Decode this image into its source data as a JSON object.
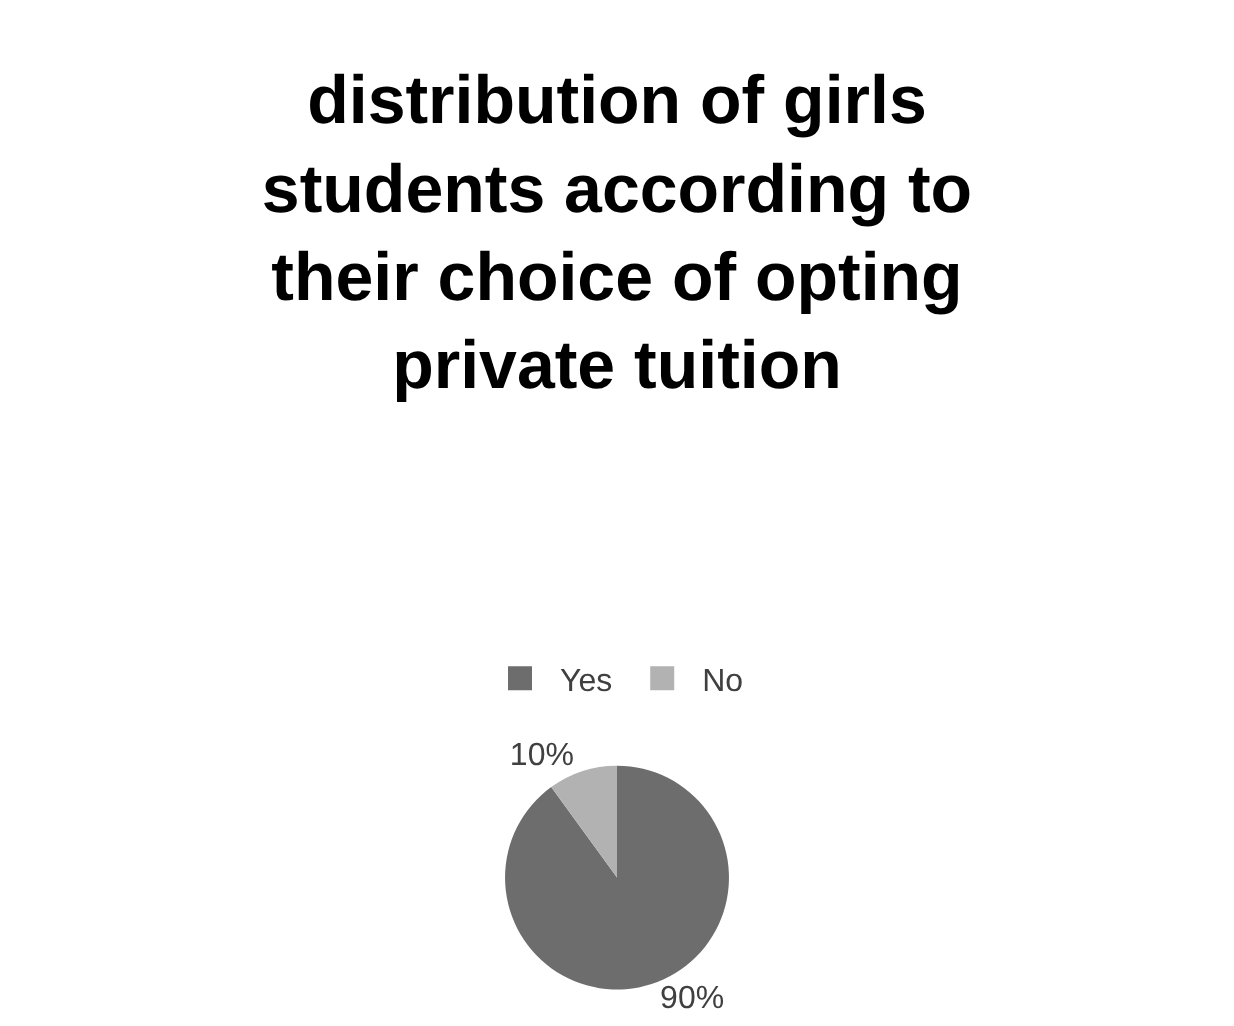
{
  "chart_data": {
    "type": "pie",
    "title": "distribution of girls students according to their choice of opting private tuition",
    "categories": [
      "Yes",
      "No"
    ],
    "values": [
      90,
      10
    ],
    "value_labels": [
      "90%",
      "10%"
    ],
    "colors": [
      "#6d6d6d",
      "#b2b2b2"
    ],
    "legend": "top"
  }
}
